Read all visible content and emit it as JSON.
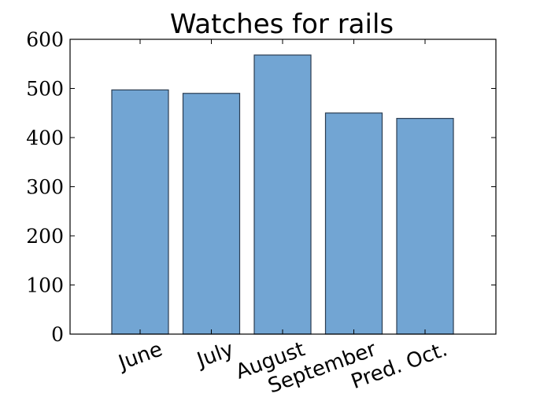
{
  "chart_data": {
    "type": "bar",
    "title": "Watches for rails",
    "xlabel": "",
    "ylabel": "",
    "categories": [
      "June",
      "July",
      "August",
      "September",
      "Pred. Oct."
    ],
    "values": [
      497,
      490,
      568,
      450,
      439
    ],
    "ylim": [
      0,
      600
    ],
    "yticks": [
      0,
      100,
      200,
      300,
      400,
      500,
      600
    ],
    "xtick_rotation_deg": -20,
    "grid": false,
    "legend": "none",
    "colors": {
      "bar_fill": "#72a5d3",
      "bar_edge": "#2b3d52",
      "axes": "#000000",
      "background": "#ffffff"
    }
  }
}
